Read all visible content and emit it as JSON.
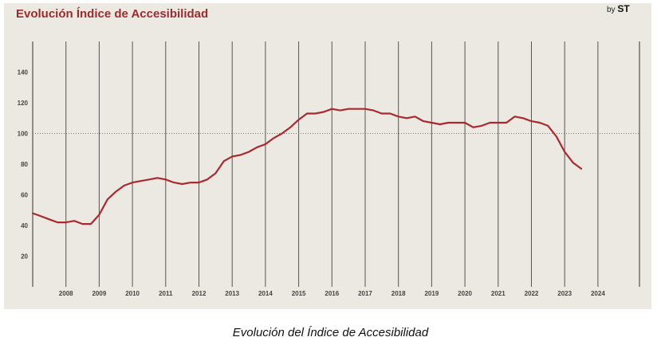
{
  "header": {
    "title": "Evolución Índice de Accesibilidad",
    "byline_prefix": "by",
    "byline_brand": "ST"
  },
  "caption": "Evolución del Índice de Accesibilidad",
  "colors": {
    "line": "#a82a30",
    "panel": "#ece8e2",
    "title": "#9a2b2e"
  },
  "chart_data": {
    "type": "line",
    "title": "Evolución Índice de Accesibilidad",
    "xlabel": "",
    "ylabel": "",
    "xlim": [
      2007.0,
      2025.25
    ],
    "ylim": [
      0,
      160
    ],
    "y_ticks": [
      20,
      40,
      60,
      80,
      100,
      120,
      140
    ],
    "x_ticks": [
      2008,
      2009,
      2010,
      2011,
      2012,
      2013,
      2014,
      2015,
      2016,
      2017,
      2018,
      2019,
      2020,
      2021,
      2022,
      2023,
      2024
    ],
    "reference_line": 100,
    "grid": "vertical lines at each year",
    "series": [
      {
        "x": [
          2007.0,
          2007.25,
          2007.5,
          2007.75,
          2008.0,
          2008.25,
          2008.5,
          2008.75,
          2009.0,
          2009.25,
          2009.5,
          2009.75,
          2010.0,
          2010.25,
          2010.5,
          2010.75,
          2011.0,
          2011.25,
          2011.5,
          2011.75,
          2012.0,
          2012.25,
          2012.5,
          2012.75,
          2013.0,
          2013.25,
          2013.5,
          2013.75,
          2014.0,
          2014.25,
          2014.5,
          2014.75,
          2015.0,
          2015.25,
          2015.5,
          2015.75,
          2016.0,
          2016.25,
          2016.5,
          2016.75,
          2017.0,
          2017.25,
          2017.5,
          2017.75,
          2018.0,
          2018.25,
          2018.5,
          2018.75,
          2019.0,
          2019.25,
          2019.5,
          2019.75,
          2020.0,
          2020.25,
          2020.5,
          2020.75,
          2021.0,
          2021.25,
          2021.5,
          2021.75,
          2022.0,
          2022.25,
          2022.5,
          2022.75,
          2023.0,
          2023.25,
          2023.5
        ],
        "values": [
          48,
          46,
          44,
          42,
          42,
          43,
          41,
          41,
          47,
          57,
          62,
          66,
          68,
          69,
          70,
          71,
          70,
          68,
          67,
          68,
          68,
          70,
          74,
          82,
          85,
          86,
          88,
          91,
          93,
          97,
          100,
          104,
          109,
          113,
          113,
          114,
          116,
          115,
          116,
          116,
          116,
          115,
          113,
          113,
          111,
          110,
          111,
          108,
          107,
          106,
          107,
          107,
          107,
          104,
          105,
          107,
          107,
          107,
          111,
          110,
          108,
          107,
          105,
          98,
          88,
          81,
          77
        ]
      }
    ]
  }
}
